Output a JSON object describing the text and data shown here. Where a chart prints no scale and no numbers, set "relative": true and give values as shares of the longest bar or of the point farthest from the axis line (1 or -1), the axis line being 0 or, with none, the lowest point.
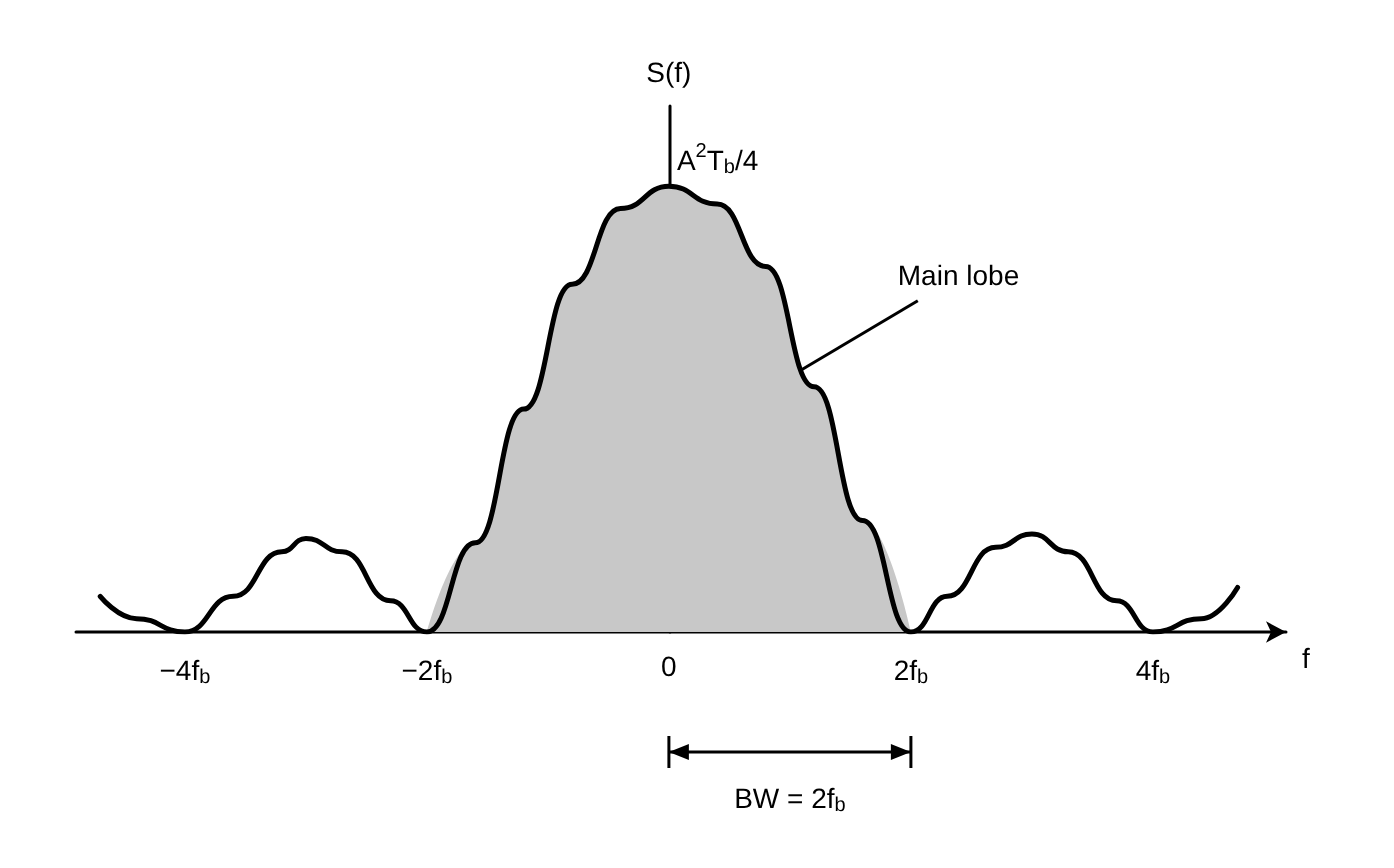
{
  "chart_data": {
    "type": "line",
    "relative": true,
    "xlabel": "f",
    "ylabel": "S(f)",
    "xlim": [
      -4.9,
      5.1
    ],
    "xticks": [
      {
        "value": -4,
        "label": "−4f$_{b}$"
      },
      {
        "value": -2,
        "label": "−2f$_{b}$"
      },
      0,
      {
        "value": 2,
        "label": "2f$_{b}$"
      },
      {
        "value": 4,
        "label": "4f$_{b}$"
      }
    ],
    "marker": "none",
    "line_style": "solid",
    "series": [
      {
        "type": "area",
        "color": "#c8c8c8",
        "x": [
          -2,
          -1.6,
          -1.2,
          -0.8,
          -0.4,
          0,
          0.4,
          0.8,
          1.2,
          1.6,
          2
        ],
        "values": [
          0,
          0.2,
          0.5,
          0.78,
          0.95,
          1,
          0.96,
          0.82,
          0.55,
          0.25,
          0
        ]
      },
      {
        "color": "#000000",
        "x": [
          -4.7,
          -4.4,
          -4,
          -3.6,
          -3.2,
          -3,
          -2.7,
          -2.3,
          -2,
          -1.6,
          -1.2,
          -0.8,
          -0.4,
          0,
          0.4,
          0.8,
          1.2,
          1.6,
          2,
          2.3,
          2.7,
          3,
          3.3,
          3.7,
          4,
          4.4,
          4.7
        ],
        "values": [
          0.08,
          0.03,
          0,
          0.08,
          0.18,
          0.21,
          0.18,
          0.07,
          0,
          0.2,
          0.5,
          0.78,
          0.95,
          1,
          0.96,
          0.82,
          0.55,
          0.25,
          0,
          0.08,
          0.19,
          0.22,
          0.18,
          0.07,
          0,
          0.03,
          0.1
        ]
      }
    ],
    "annotations": [
      {
        "text": "A$^{2}$T$_{b}$/4",
        "x": 0,
        "y": 1
      },
      "Main lobe",
      "BW = 2f$_{b}$"
    ]
  }
}
